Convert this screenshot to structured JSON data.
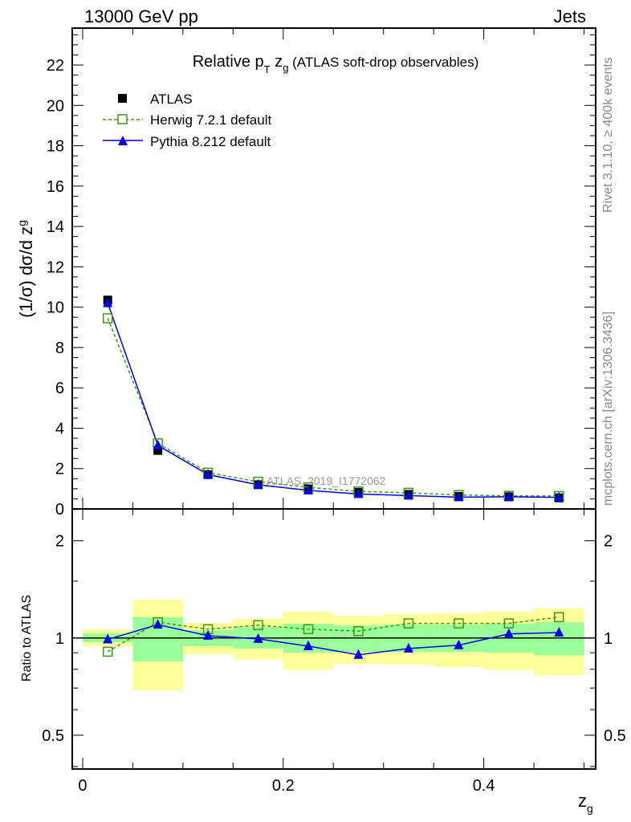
{
  "chart_data": {
    "type": "line",
    "header_left": "13000 GeV pp",
    "header_right": "Jets",
    "title_main": "Relative p",
    "title_sub_T": "T",
    "title_z": " z",
    "title_sub_g": "g",
    "title_rest": " (ATLAS soft-drop observables)",
    "ylabel": "(1/σ) dσ/d z",
    "ylabel_sub": "g",
    "ratio_ylabel": "Ratio to ATLAS",
    "xlabel": "z",
    "xlabel_sub": "g",
    "watermark": "ATLAS_2019_I1772062",
    "side_text_1": "Rivet 3.1.10, ≥ 400k events",
    "side_text_2": "mcplots.cern.ch [arXiv:1306.3436]",
    "xlim": [
      -0.0104,
      0.5116
    ],
    "ylim": [
      0,
      23.83
    ],
    "ratio_ylim": [
      0.393,
      2.51
    ],
    "ratio_scale": "log",
    "x_ticks": [
      "0",
      "0.2",
      "0.4"
    ],
    "x_tick_values": [
      0,
      0.2,
      0.4
    ],
    "y_ticks": [
      "0",
      "2",
      "4",
      "6",
      "8",
      "10",
      "12",
      "14",
      "16",
      "18",
      "20",
      "22"
    ],
    "y_tick_values": [
      0,
      2,
      4,
      6,
      8,
      10,
      12,
      14,
      16,
      18,
      20,
      22
    ],
    "ratio_ticks": [
      "0.5",
      "1",
      "2"
    ],
    "ratio_tick_values": [
      0.5,
      1,
      2
    ],
    "x": [
      0.025,
      0.075,
      0.125,
      0.175,
      0.225,
      0.275,
      0.325,
      0.375,
      0.425,
      0.475
    ],
    "bin_edges": [
      0,
      0.05,
      0.1,
      0.15,
      0.2,
      0.25,
      0.3,
      0.35,
      0.4,
      0.45,
      0.5
    ],
    "legend": [
      "ATLAS",
      "Herwig 7.2.1 default",
      "Pythia 8.212 default"
    ],
    "series": [
      {
        "name": "ATLAS",
        "color": "#000000",
        "values": [
          10.35,
          2.9,
          1.7,
          1.2,
          1.0,
          0.82,
          0.72,
          0.62,
          0.6,
          0.55
        ]
      },
      {
        "name": "Herwig 7.2.1 default",
        "color": "#3a9a10",
        "values": [
          9.45,
          3.25,
          1.8,
          1.35,
          1.07,
          0.87,
          0.8,
          0.69,
          0.65,
          0.64
        ],
        "ratio": [
          0.907,
          1.12,
          1.065,
          1.096,
          1.065,
          1.05,
          1.11,
          1.11,
          1.11,
          1.16
        ]
      },
      {
        "name": "Pythia 8.212 default",
        "color": "#0000ee",
        "values": [
          10.2,
          3.15,
          1.7,
          1.2,
          0.92,
          0.74,
          0.66,
          0.58,
          0.6,
          0.57
        ],
        "ratio": [
          0.99,
          1.1,
          1.017,
          0.994,
          0.944,
          0.887,
          0.928,
          0.95,
          1.03,
          1.04
        ]
      }
    ],
    "band_total": {
      "color": "#ffff99",
      "lo": [
        0.943,
        0.688,
        0.89,
        0.858,
        0.796,
        0.831,
        0.827,
        0.813,
        0.796,
        0.767
      ],
      "hi": [
        1.063,
        1.314,
        1.113,
        1.146,
        1.206,
        1.172,
        1.186,
        1.192,
        1.206,
        1.235
      ]
    },
    "band_stat": {
      "color": "#99ff99",
      "lo": [
        0.97,
        0.846,
        0.943,
        0.927,
        0.9,
        0.906,
        0.906,
        0.906,
        0.9,
        0.884
      ],
      "hi": [
        1.033,
        1.159,
        1.057,
        1.082,
        1.107,
        1.094,
        1.1,
        1.1,
        1.107,
        1.119
      ]
    }
  }
}
